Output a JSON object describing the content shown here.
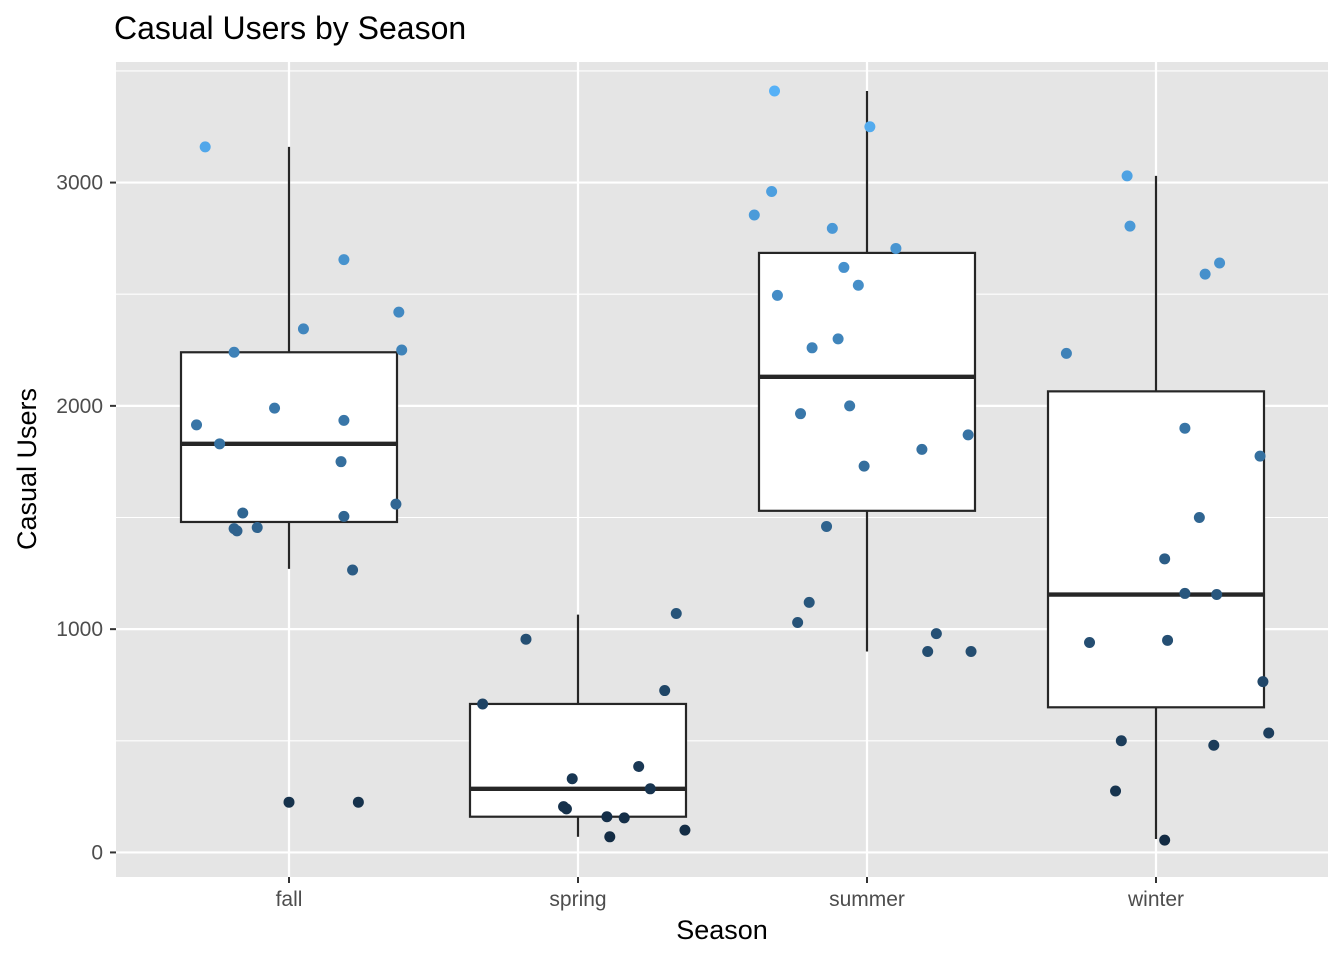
{
  "chart_data": {
    "type": "box",
    "title": "Casual Users by Season",
    "xlabel": "Season",
    "ylabel": "Casual Users",
    "categories": [
      "fall",
      "spring",
      "summer",
      "winter"
    ],
    "ylim": [
      -110,
      3540
    ],
    "yticks": [
      0,
      1000,
      2000,
      3000
    ],
    "grid": true,
    "colors": {
      "panel": "#e5e5e5",
      "gridline": "#ffffff",
      "box_fill": "#ffffff",
      "box_line": "#262626",
      "point_low": "#132b43",
      "point_high": "#56b1f7"
    },
    "boxes": [
      {
        "category": "fall",
        "lower_whisker": 1270,
        "q1": 1480,
        "median": 1830,
        "q3": 2240,
        "upper_whisker": 3160
      },
      {
        "category": "spring",
        "lower_whisker": 70,
        "q1": 160,
        "median": 285,
        "q3": 665,
        "upper_whisker": 1065
      },
      {
        "category": "summer",
        "lower_whisker": 900,
        "q1": 1530,
        "median": 2130,
        "q3": 2685,
        "upper_whisker": 3410
      },
      {
        "category": "winter",
        "lower_whisker": 60,
        "q1": 650,
        "median": 1155,
        "q3": 2065,
        "upper_whisker": 3030
      }
    ],
    "points": [
      {
        "category": "fall",
        "jitter": -0.29,
        "y": 3160
      },
      {
        "category": "fall",
        "jitter": 0.19,
        "y": 2655
      },
      {
        "category": "fall",
        "jitter": 0.38,
        "y": 2420
      },
      {
        "category": "fall",
        "jitter": 0.05,
        "y": 2345
      },
      {
        "category": "fall",
        "jitter": 0.39,
        "y": 2250
      },
      {
        "category": "fall",
        "jitter": -0.19,
        "y": 2240
      },
      {
        "category": "fall",
        "jitter": -0.05,
        "y": 1990
      },
      {
        "category": "fall",
        "jitter": 0.19,
        "y": 1935
      },
      {
        "category": "fall",
        "jitter": -0.32,
        "y": 1915
      },
      {
        "category": "fall",
        "jitter": -0.24,
        "y": 1830
      },
      {
        "category": "fall",
        "jitter": 0.18,
        "y": 1750
      },
      {
        "category": "fall",
        "jitter": 0.37,
        "y": 1560
      },
      {
        "category": "fall",
        "jitter": -0.16,
        "y": 1520
      },
      {
        "category": "fall",
        "jitter": 0.19,
        "y": 1505
      },
      {
        "category": "fall",
        "jitter": -0.19,
        "y": 1450
      },
      {
        "category": "fall",
        "jitter": -0.11,
        "y": 1455
      },
      {
        "category": "fall",
        "jitter": -0.18,
        "y": 1440
      },
      {
        "category": "fall",
        "jitter": 0.22,
        "y": 1265
      },
      {
        "category": "fall",
        "jitter": 0.0,
        "y": 225
      },
      {
        "category": "fall",
        "jitter": 0.24,
        "y": 225
      },
      {
        "category": "spring",
        "jitter": 0.34,
        "y": 1070
      },
      {
        "category": "spring",
        "jitter": -0.18,
        "y": 955
      },
      {
        "category": "spring",
        "jitter": 0.3,
        "y": 725
      },
      {
        "category": "spring",
        "jitter": -0.33,
        "y": 665
      },
      {
        "category": "spring",
        "jitter": 0.21,
        "y": 385
      },
      {
        "category": "spring",
        "jitter": -0.02,
        "y": 330
      },
      {
        "category": "spring",
        "jitter": 0.25,
        "y": 285
      },
      {
        "category": "spring",
        "jitter": -0.05,
        "y": 205
      },
      {
        "category": "spring",
        "jitter": -0.04,
        "y": 195
      },
      {
        "category": "spring",
        "jitter": 0.1,
        "y": 160
      },
      {
        "category": "spring",
        "jitter": 0.16,
        "y": 155
      },
      {
        "category": "spring",
        "jitter": 0.37,
        "y": 100
      },
      {
        "category": "spring",
        "jitter": 0.11,
        "y": 70
      },
      {
        "category": "summer",
        "jitter": -0.32,
        "y": 3410
      },
      {
        "category": "summer",
        "jitter": 0.01,
        "y": 3250
      },
      {
        "category": "summer",
        "jitter": -0.33,
        "y": 2960
      },
      {
        "category": "summer",
        "jitter": -0.39,
        "y": 2855
      },
      {
        "category": "summer",
        "jitter": -0.12,
        "y": 2795
      },
      {
        "category": "summer",
        "jitter": 0.1,
        "y": 2705
      },
      {
        "category": "summer",
        "jitter": -0.08,
        "y": 2620
      },
      {
        "category": "summer",
        "jitter": -0.03,
        "y": 2540
      },
      {
        "category": "summer",
        "jitter": -0.31,
        "y": 2495
      },
      {
        "category": "summer",
        "jitter": -0.1,
        "y": 2300
      },
      {
        "category": "summer",
        "jitter": -0.19,
        "y": 2260
      },
      {
        "category": "summer",
        "jitter": -0.06,
        "y": 2000
      },
      {
        "category": "summer",
        "jitter": -0.23,
        "y": 1965
      },
      {
        "category": "summer",
        "jitter": 0.35,
        "y": 1870
      },
      {
        "category": "summer",
        "jitter": 0.19,
        "y": 1805
      },
      {
        "category": "summer",
        "jitter": -0.01,
        "y": 1730
      },
      {
        "category": "summer",
        "jitter": -0.14,
        "y": 1460
      },
      {
        "category": "summer",
        "jitter": -0.2,
        "y": 1120
      },
      {
        "category": "summer",
        "jitter": -0.24,
        "y": 1030
      },
      {
        "category": "summer",
        "jitter": 0.24,
        "y": 980
      },
      {
        "category": "summer",
        "jitter": 0.21,
        "y": 900
      },
      {
        "category": "summer",
        "jitter": 0.36,
        "y": 900
      },
      {
        "category": "winter",
        "jitter": -0.1,
        "y": 3030
      },
      {
        "category": "winter",
        "jitter": -0.09,
        "y": 2805
      },
      {
        "category": "winter",
        "jitter": 0.22,
        "y": 2640
      },
      {
        "category": "winter",
        "jitter": 0.17,
        "y": 2590
      },
      {
        "category": "winter",
        "jitter": -0.31,
        "y": 2235
      },
      {
        "category": "winter",
        "jitter": 0.1,
        "y": 1900
      },
      {
        "category": "winter",
        "jitter": 0.36,
        "y": 1775
      },
      {
        "category": "winter",
        "jitter": 0.15,
        "y": 1500
      },
      {
        "category": "winter",
        "jitter": 0.03,
        "y": 1315
      },
      {
        "category": "winter",
        "jitter": 0.1,
        "y": 1160
      },
      {
        "category": "winter",
        "jitter": 0.21,
        "y": 1155
      },
      {
        "category": "winter",
        "jitter": -0.23,
        "y": 940
      },
      {
        "category": "winter",
        "jitter": 0.04,
        "y": 950
      },
      {
        "category": "winter",
        "jitter": 0.37,
        "y": 765
      },
      {
        "category": "winter",
        "jitter": 0.39,
        "y": 535
      },
      {
        "category": "winter",
        "jitter": -0.12,
        "y": 500
      },
      {
        "category": "winter",
        "jitter": 0.2,
        "y": 480
      },
      {
        "category": "winter",
        "jitter": -0.14,
        "y": 275
      },
      {
        "category": "winter",
        "jitter": 0.03,
        "y": 55
      }
    ]
  }
}
